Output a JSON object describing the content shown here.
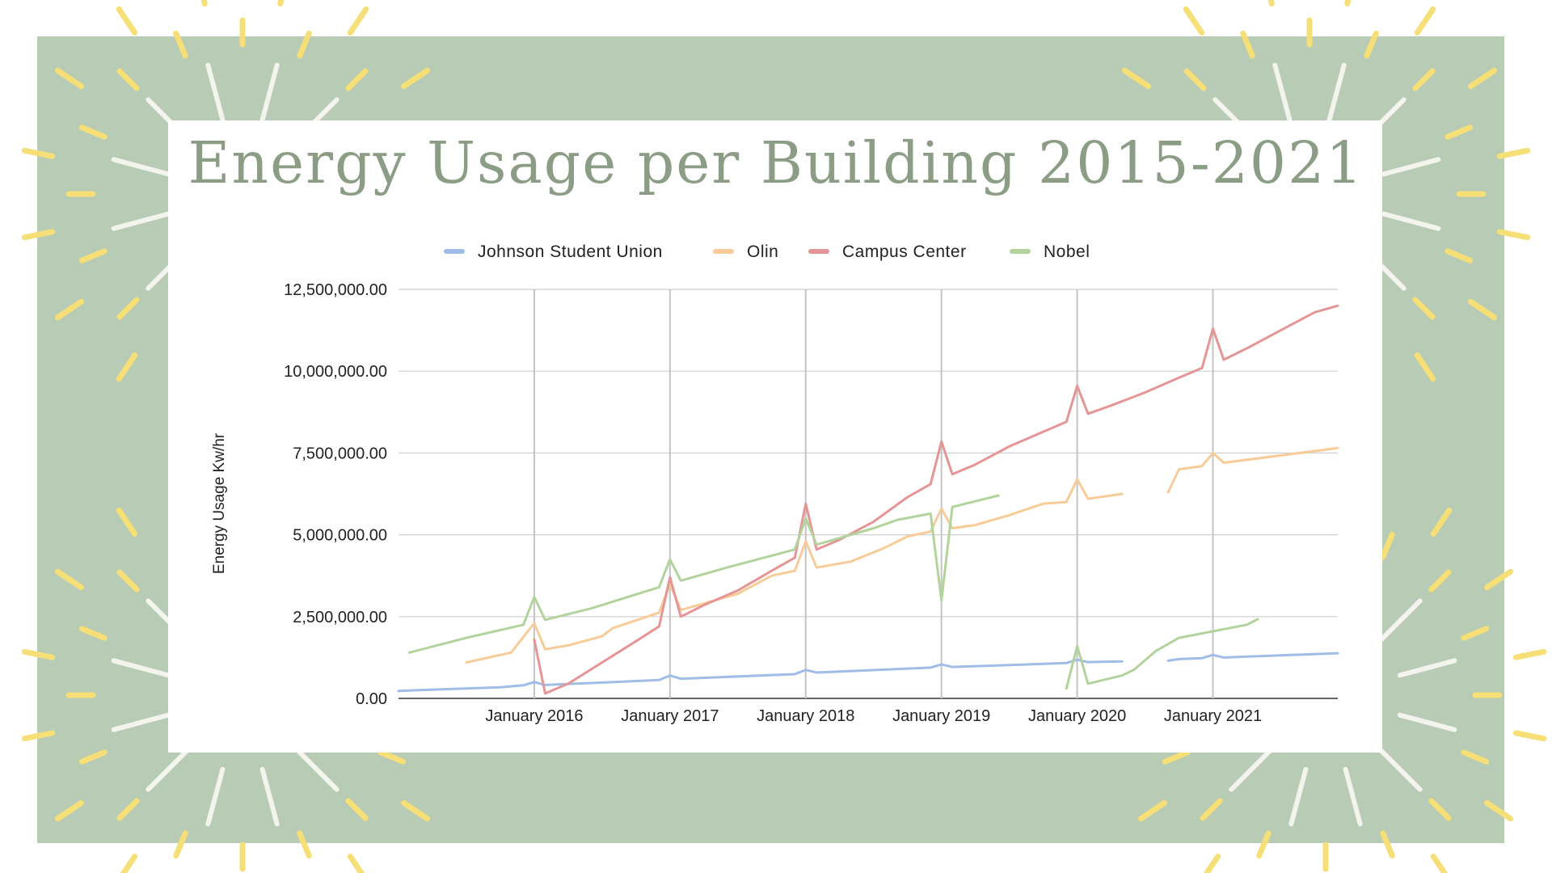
{
  "slide": {
    "colors": {
      "panel": "#b8cbb4",
      "ray_yellow": "#f7df78",
      "ray_white": "#f4f4ef",
      "title": "#8c9d86"
    }
  },
  "chart_data": {
    "type": "line",
    "title": "Energy Usage per Building 2015-2021",
    "xlabel": "",
    "ylabel": "Energy Usage Kw/hr",
    "x_range": [
      2015.0,
      2021.92
    ],
    "ylim": [
      0,
      12500000
    ],
    "y_ticks": [
      0,
      2500000,
      5000000,
      7500000,
      10000000,
      12500000
    ],
    "y_tick_labels": [
      "0.00",
      "2,500,000.00",
      "5,000,000.00",
      "7,500,000.00",
      "10,000,000.00",
      "12,500,000.00"
    ],
    "x_ticks": [
      2016,
      2017,
      2018,
      2019,
      2020,
      2021
    ],
    "x_tick_labels": [
      "January 2016",
      "January 2017",
      "January 2018",
      "January 2019",
      "January 2020",
      "January 2021"
    ],
    "legend_position": "top",
    "grid": true,
    "series": [
      {
        "name": "Johnson Student Union",
        "color": "#9fbde8",
        "segments": [
          [
            [
              2015.0,
              230000
            ],
            [
              2015.75,
              340000
            ],
            [
              2015.92,
              400000
            ],
            [
              2016.0,
              500000
            ],
            [
              2016.08,
              410000
            ],
            [
              2016.92,
              560000
            ],
            [
              2017.0,
              700000
            ],
            [
              2017.08,
              600000
            ],
            [
              2017.92,
              740000
            ],
            [
              2018.0,
              870000
            ],
            [
              2018.08,
              790000
            ],
            [
              2018.92,
              940000
            ],
            [
              2019.0,
              1040000
            ],
            [
              2019.08,
              960000
            ],
            [
              2019.92,
              1080000
            ],
            [
              2020.0,
              1180000
            ],
            [
              2020.08,
              1110000
            ],
            [
              2020.33,
              1130000
            ]
          ],
          [
            [
              2020.67,
              1150000
            ],
            [
              2020.75,
              1200000
            ],
            [
              2020.92,
              1230000
            ],
            [
              2021.0,
              1330000
            ],
            [
              2021.08,
              1250000
            ],
            [
              2021.92,
              1380000
            ]
          ]
        ]
      },
      {
        "name": "Olin",
        "color": "#f8cc98",
        "segments": [
          [
            [
              2015.5,
              1100000
            ],
            [
              2015.83,
              1400000
            ],
            [
              2016.0,
              2300000
            ],
            [
              2016.08,
              1500000
            ],
            [
              2016.25,
              1620000
            ],
            [
              2016.5,
              1900000
            ],
            [
              2016.58,
              2150000
            ],
            [
              2016.92,
              2620000
            ],
            [
              2017.0,
              3500000
            ],
            [
              2017.08,
              2700000
            ],
            [
              2017.25,
              2900000
            ],
            [
              2017.5,
              3200000
            ],
            [
              2017.75,
              3750000
            ],
            [
              2017.92,
              3900000
            ],
            [
              2018.0,
              4800000
            ],
            [
              2018.08,
              4000000
            ],
            [
              2018.33,
              4180000
            ],
            [
              2018.58,
              4600000
            ],
            [
              2018.75,
              4950000
            ],
            [
              2018.92,
              5100000
            ],
            [
              2019.0,
              5800000
            ],
            [
              2019.08,
              5200000
            ],
            [
              2019.25,
              5300000
            ],
            [
              2019.5,
              5600000
            ],
            [
              2019.75,
              5950000
            ],
            [
              2019.92,
              6000000
            ],
            [
              2020.0,
              6700000
            ],
            [
              2020.08,
              6100000
            ],
            [
              2020.33,
              6250000
            ]
          ],
          [
            [
              2020.67,
              6300000
            ],
            [
              2020.75,
              7000000
            ],
            [
              2020.92,
              7100000
            ],
            [
              2021.0,
              7500000
            ],
            [
              2021.08,
              7200000
            ],
            [
              2021.92,
              7650000
            ]
          ]
        ]
      },
      {
        "name": "Campus Center",
        "color": "#e59595",
        "segments": [
          [
            [
              2016.0,
              1800000
            ],
            [
              2016.08,
              150000
            ],
            [
              2016.25,
              450000
            ],
            [
              2016.5,
              1100000
            ],
            [
              2016.75,
              1750000
            ],
            [
              2016.92,
              2200000
            ],
            [
              2017.0,
              3700000
            ],
            [
              2017.08,
              2500000
            ],
            [
              2017.25,
              2850000
            ],
            [
              2017.5,
              3300000
            ],
            [
              2017.75,
              3900000
            ],
            [
              2017.92,
              4300000
            ],
            [
              2018.0,
              5950000
            ],
            [
              2018.08,
              4550000
            ],
            [
              2018.25,
              4850000
            ],
            [
              2018.5,
              5400000
            ],
            [
              2018.75,
              6150000
            ],
            [
              2018.92,
              6550000
            ],
            [
              2019.0,
              7850000
            ],
            [
              2019.08,
              6850000
            ],
            [
              2019.25,
              7150000
            ],
            [
              2019.5,
              7700000
            ],
            [
              2019.75,
              8150000
            ],
            [
              2019.92,
              8450000
            ],
            [
              2020.0,
              9550000
            ],
            [
              2020.08,
              8700000
            ],
            [
              2020.25,
              8950000
            ],
            [
              2020.5,
              9350000
            ],
            [
              2020.75,
              9800000
            ],
            [
              2020.92,
              10100000
            ],
            [
              2021.0,
              11300000
            ],
            [
              2021.08,
              10350000
            ],
            [
              2021.25,
              10700000
            ],
            [
              2021.5,
              11250000
            ],
            [
              2021.75,
              11800000
            ],
            [
              2021.92,
              12000000
            ]
          ]
        ]
      },
      {
        "name": "Nobel",
        "color": "#b2d49c",
        "segments": [
          [
            [
              2015.08,
              1400000
            ],
            [
              2015.5,
              1850000
            ],
            [
              2015.92,
              2250000
            ],
            [
              2016.0,
              3100000
            ],
            [
              2016.08,
              2400000
            ],
            [
              2016.42,
              2750000
            ],
            [
              2016.92,
              3400000
            ],
            [
              2017.0,
              4250000
            ],
            [
              2017.08,
              3600000
            ],
            [
              2017.42,
              4000000
            ],
            [
              2017.92,
              4550000
            ],
            [
              2018.0,
              5500000
            ],
            [
              2018.08,
              4700000
            ],
            [
              2018.5,
              5200000
            ],
            [
              2018.67,
              5450000
            ],
            [
              2018.92,
              5650000
            ],
            [
              2019.0,
              3000000
            ],
            [
              2019.08,
              5850000
            ],
            [
              2019.42,
              6200000
            ]
          ],
          [
            [
              2019.92,
              300000
            ],
            [
              2020.0,
              1600000
            ],
            [
              2020.08,
              450000
            ],
            [
              2020.33,
              700000
            ],
            [
              2020.42,
              880000
            ],
            [
              2020.58,
              1450000
            ],
            [
              2020.75,
              1850000
            ],
            [
              2021.0,
              2050000
            ],
            [
              2021.25,
              2250000
            ],
            [
              2021.33,
              2420000
            ]
          ]
        ]
      }
    ]
  }
}
